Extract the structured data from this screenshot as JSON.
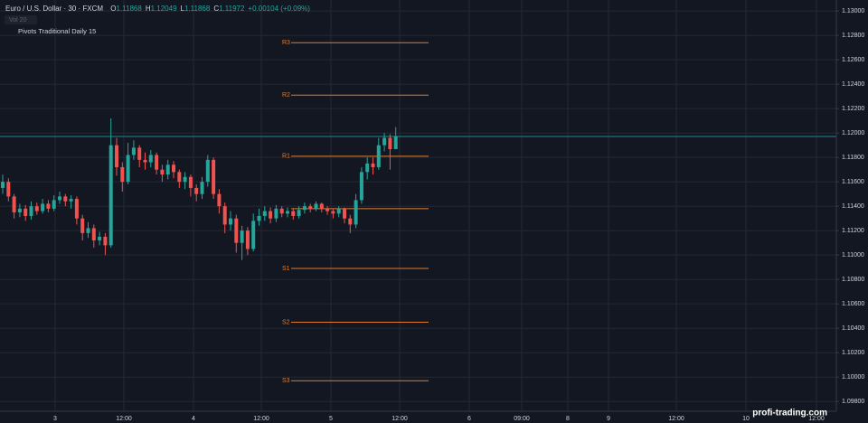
{
  "chart_data": {
    "type": "candlestick",
    "title": "Euro / U.S. Dollar · 30 · FXCM",
    "ohlc_labels": [
      "O",
      "H",
      "L",
      "C"
    ],
    "ohlc_values": [
      1.11868,
      1.12049,
      1.11868,
      1.11972
    ],
    "change": "+0.00104 (+0.09%)",
    "indicators": [
      "Vol 20",
      "Pivots Traditional Daily 15"
    ],
    "watermark": "profi-trading.com",
    "up_color": "#26a69a",
    "down_color": "#ef5350",
    "pivot_color": "#e07b2c",
    "price_line_color": "#1f8b8b",
    "grid": true,
    "ylim": [
      1.0972,
      1.1309
    ],
    "yticks": [
      {
        "value": 1.13,
        "label": "1.13000"
      },
      {
        "value": 1.128,
        "label": "1.12800"
      },
      {
        "value": 1.126,
        "label": "1.12600"
      },
      {
        "value": 1.124,
        "label": "1.12400"
      },
      {
        "value": 1.122,
        "label": "1.12200"
      },
      {
        "value": 1.12,
        "label": "1.12000"
      },
      {
        "value": 1.118,
        "label": "1.11800"
      },
      {
        "value": 1.116,
        "label": "1.11600"
      },
      {
        "value": 1.114,
        "label": "1.11400"
      },
      {
        "value": 1.112,
        "label": "1.11200"
      },
      {
        "value": 1.11,
        "label": "1.11000"
      },
      {
        "value": 1.108,
        "label": "1.10800"
      },
      {
        "value": 1.106,
        "label": "1.10600"
      },
      {
        "value": 1.104,
        "label": "1.10400"
      },
      {
        "value": 1.102,
        "label": "1.10200"
      },
      {
        "value": 1.1,
        "label": "1.10000"
      },
      {
        "value": 1.098,
        "label": "1.09800"
      }
    ],
    "x_labels": [
      "3",
      "12:00",
      "4",
      "12:00",
      "5",
      "12:00",
      "6",
      "09:00",
      "8",
      "9",
      "12:00",
      "10",
      "12:00"
    ],
    "pivots": [
      {
        "label": "R3",
        "value": 1.1274
      },
      {
        "label": "R2",
        "value": 1.1231
      },
      {
        "label": "R1",
        "value": 1.1181
      },
      {
        "label": null,
        "value": 1.1138
      },
      {
        "label": "S1",
        "value": 1.1089
      },
      {
        "label": "S2",
        "value": 1.1045
      },
      {
        "label": "S3",
        "value": 1.0997
      }
    ],
    "open": [
      1.1155,
      1.116,
      1.1148,
      1.1135,
      1.1138,
      1.1132,
      1.114,
      1.1136,
      1.1142,
      1.1138,
      1.1145,
      1.1148,
      1.1144,
      1.1146,
      1.113,
      1.1118,
      1.1122,
      1.1112,
      1.1115,
      1.1108,
      1.119,
      1.1172,
      1.116,
      1.1182,
      1.1188,
      1.1178,
      1.1176,
      1.1182,
      1.117,
      1.1166,
      1.1174,
      1.1168,
      1.116,
      1.1164,
      1.1155,
      1.115,
      1.116,
      1.1178,
      1.115,
      1.114,
      1.1125,
      1.113,
      1.111,
      1.112,
      1.1105,
      1.1128,
      1.1132,
      1.1136,
      1.113,
      1.1138,
      1.1134,
      1.1136,
      1.1132,
      1.1137,
      1.114,
      1.1138,
      1.1142,
      1.1138,
      1.1136,
      1.1134,
      1.1138,
      1.113,
      1.1125,
      1.1145,
      1.1168,
      1.1175,
      1.1172,
      1.119,
      1.1196,
      1.11868
    ],
    "high": [
      1.1166,
      1.1163,
      1.115,
      1.1142,
      1.1141,
      1.1144,
      1.1143,
      1.1146,
      1.1145,
      1.1149,
      1.1152,
      1.115,
      1.1149,
      1.1148,
      1.1133,
      1.1127,
      1.1125,
      1.1119,
      1.1118,
      1.1212,
      1.1196,
      1.1176,
      1.1192,
      1.1194,
      1.119,
      1.1184,
      1.1186,
      1.1184,
      1.1174,
      1.1178,
      1.1177,
      1.117,
      1.1168,
      1.1166,
      1.1158,
      1.1164,
      1.1182,
      1.118,
      1.1154,
      1.1143,
      1.1136,
      1.1133,
      1.1124,
      1.1123,
      1.1134,
      1.1138,
      1.114,
      1.1139,
      1.1141,
      1.114,
      1.1139,
      1.1138,
      1.114,
      1.1143,
      1.1142,
      1.1144,
      1.1143,
      1.114,
      1.1138,
      1.114,
      1.1139,
      1.1133,
      1.115,
      1.1172,
      1.118,
      1.118,
      1.1196,
      1.12,
      1.1199,
      1.12049
    ],
    "low": [
      1.115,
      1.1144,
      1.113,
      1.1131,
      1.1128,
      1.1129,
      1.1133,
      1.1134,
      1.1135,
      1.1136,
      1.1142,
      1.114,
      1.1138,
      1.1125,
      1.1112,
      1.1114,
      1.1106,
      1.1108,
      1.11,
      1.1106,
      1.1165,
      1.1152,
      1.1158,
      1.1178,
      1.1172,
      1.117,
      1.1172,
      1.1166,
      1.116,
      1.1162,
      1.1163,
      1.1155,
      1.1154,
      1.1148,
      1.1144,
      1.1146,
      1.1156,
      1.1146,
      1.1134,
      1.1118,
      1.112,
      1.1102,
      1.1096,
      1.11,
      1.1103,
      1.1124,
      1.1128,
      1.1126,
      1.1127,
      1.1131,
      1.1131,
      1.1129,
      1.113,
      1.1134,
      1.1135,
      1.1136,
      1.1135,
      1.1133,
      1.113,
      1.1131,
      1.1126,
      1.1118,
      1.1122,
      1.1142,
      1.1162,
      1.1166,
      1.117,
      1.1185,
      1.117,
      1.11868
    ],
    "close": [
      1.116,
      1.1148,
      1.1135,
      1.1138,
      1.1132,
      1.114,
      1.1136,
      1.1142,
      1.1138,
      1.1145,
      1.1148,
      1.1144,
      1.1146,
      1.113,
      1.1118,
      1.1122,
      1.1112,
      1.1115,
      1.1108,
      1.119,
      1.1172,
      1.116,
      1.1182,
      1.1188,
      1.1178,
      1.1176,
      1.1182,
      1.117,
      1.1166,
      1.1174,
      1.1168,
      1.116,
      1.1164,
      1.1155,
      1.115,
      1.116,
      1.1178,
      1.115,
      1.114,
      1.1125,
      1.113,
      1.111,
      1.112,
      1.1105,
      1.1128,
      1.1132,
      1.1136,
      1.113,
      1.1138,
      1.1134,
      1.1136,
      1.1132,
      1.1137,
      1.114,
      1.1138,
      1.1142,
      1.1138,
      1.1136,
      1.1134,
      1.1138,
      1.113,
      1.1125,
      1.1145,
      1.1168,
      1.1175,
      1.1172,
      1.119,
      1.1196,
      1.11868,
      1.11972
    ]
  }
}
